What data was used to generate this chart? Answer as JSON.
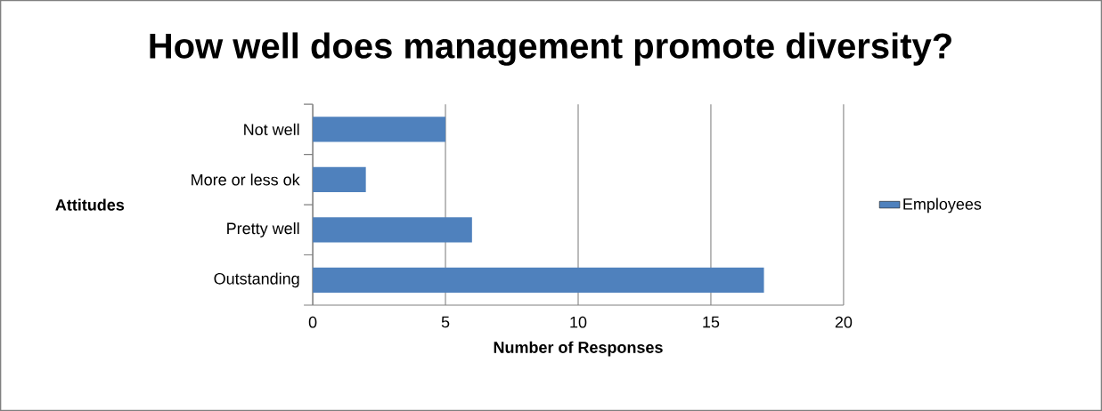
{
  "chart_data": {
    "type": "bar",
    "orientation": "horizontal",
    "title": "How well does management promote diversity?",
    "xlabel": "Number of Responses",
    "ylabel": "Attitudes",
    "categories": [
      "Not well",
      "More or less ok",
      "Pretty well",
      "Outstanding"
    ],
    "series": [
      {
        "name": "Employees",
        "color": "#4f81bd",
        "values": [
          5,
          2,
          6,
          17
        ]
      }
    ],
    "xlim": [
      0,
      20
    ],
    "xticks": [
      0,
      5,
      10,
      15,
      20
    ],
    "grid": "x",
    "legend": "right"
  }
}
